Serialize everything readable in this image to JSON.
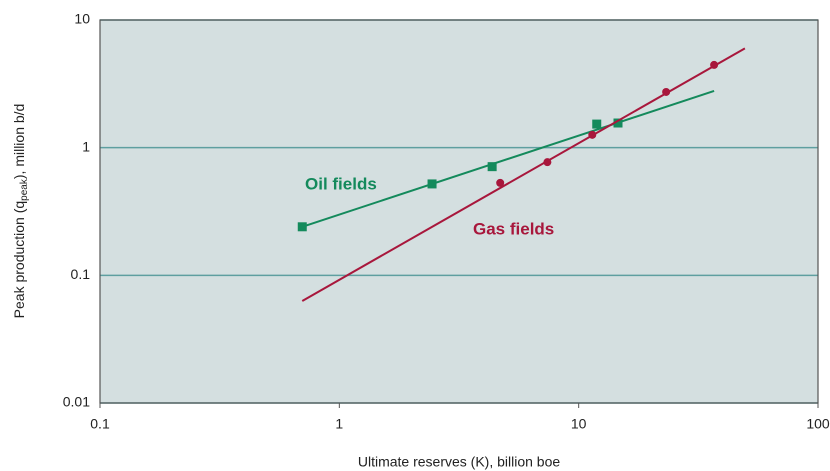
{
  "chart_data": {
    "type": "scatter",
    "x_label": "Ultimate reserves (K), billion boe",
    "y_label": [
      "Peak production (q",
      "peak",
      "), million b/d"
    ],
    "log_x": true,
    "log_y": true,
    "grid": true,
    "xlim": [
      0.1,
      100
    ],
    "xticks": [
      0.1,
      1,
      10,
      100
    ],
    "ylim": [
      0.01,
      10
    ],
    "yticks": [
      0.01,
      0.1,
      1,
      10
    ],
    "series": [
      {
        "name": "Oil fields",
        "color": "#148a5c",
        "marker": "square",
        "x": [
          0.7,
          2.44,
          4.35,
          11.9,
          14.6
        ],
        "values": [
          0.24,
          0.52,
          0.71,
          1.53,
          1.56
        ],
        "trend": {
          "x": [
            0.7,
            36.8
          ],
          "values": [
            0.24,
            2.78
          ]
        }
      },
      {
        "name": "Gas fields",
        "color": "#a8173c",
        "marker": "circle",
        "x": [
          4.7,
          7.4,
          11.4,
          23.2,
          36.8
        ],
        "values": [
          0.53,
          0.77,
          1.26,
          2.73,
          4.45
        ],
        "trend": {
          "x": [
            0.7,
            49.5
          ],
          "values": [
            0.063,
            6.0
          ]
        }
      }
    ]
  }
}
